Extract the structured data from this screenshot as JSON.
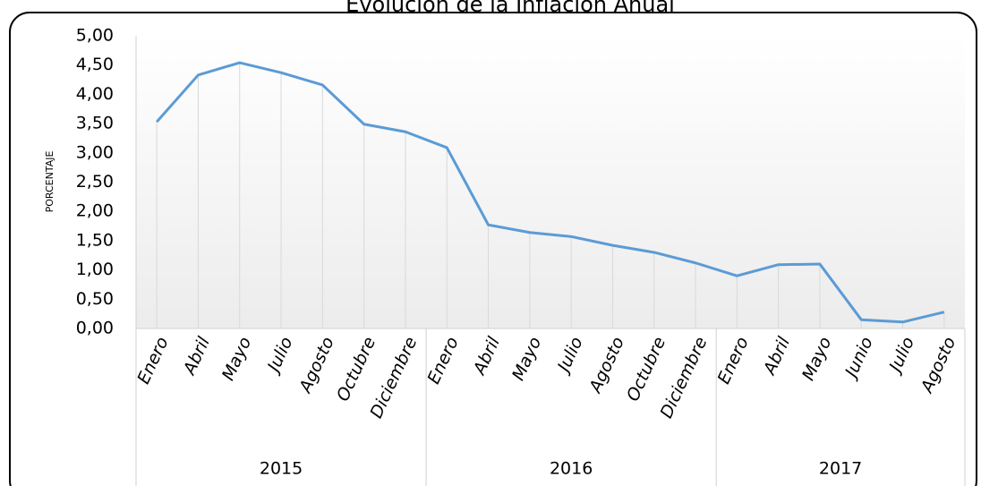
{
  "chart_data": {
    "type": "line",
    "title": "Evolución de la Inflación Anual",
    "y_label": "PORCENTAJE",
    "groups": [
      {
        "label": "2015",
        "categories": [
          "Enero",
          "Abril",
          "Mayo",
          "Julio",
          "Agosto",
          "Octubre",
          "Diciembre"
        ]
      },
      {
        "label": "2016",
        "categories": [
          "Enero",
          "Abril",
          "Mayo",
          "Julio",
          "Agosto",
          "Octubre",
          "Diciembre"
        ]
      },
      {
        "label": "2017",
        "categories": [
          "Enero",
          "Abril",
          "Mayo",
          "Junio",
          "Julio",
          "Agosto"
        ]
      }
    ],
    "series": [
      {
        "color": "#5b9bd5",
        "values": [
          3.53,
          4.33,
          4.54,
          4.37,
          4.16,
          3.49,
          3.36,
          3.09,
          1.77,
          1.64,
          1.57,
          1.42,
          1.3,
          1.12,
          0.9,
          1.09,
          1.1,
          0.15,
          0.11,
          0.28
        ]
      }
    ],
    "ylim": [
      0,
      5
    ],
    "yticks": [
      {
        "value": 0,
        "label": "0,00"
      },
      {
        "value": 0.5,
        "label": "0,50"
      },
      {
        "value": 1,
        "label": "1,00"
      },
      {
        "value": 1.5,
        "label": "1,50"
      },
      {
        "value": 2,
        "label": "2,00"
      },
      {
        "value": 2.5,
        "label": "2,50"
      },
      {
        "value": 3,
        "label": "3,00"
      },
      {
        "value": 3.5,
        "label": "3,50"
      },
      {
        "value": 4,
        "label": "4,00"
      },
      {
        "value": 4.5,
        "label": "4,50"
      },
      {
        "value": 5,
        "label": "5,00"
      }
    ],
    "drop_lines": true
  }
}
